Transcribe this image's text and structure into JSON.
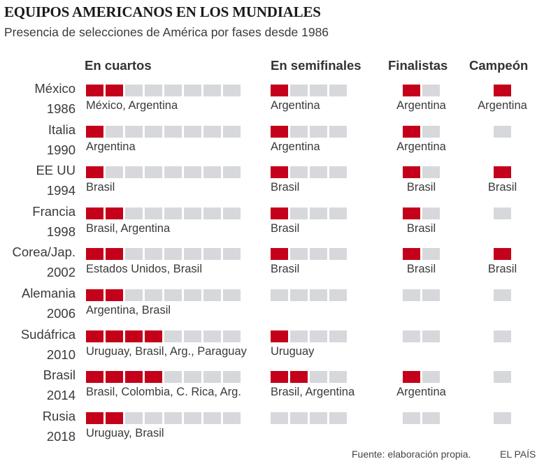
{
  "chart_data": {
    "type": "table",
    "title": "EQUIPOS AMERICANOS EN LOS MUNDIALES",
    "subtitle": "Presencia de selecciones de América por fases desde 1986",
    "colors": {
      "present": "#c4001a",
      "absent": "#d7d8db"
    },
    "columns": [
      {
        "key": "cuartos",
        "label": "En cuartos",
        "slots": 8
      },
      {
        "key": "semis",
        "label": "En semifinales",
        "slots": 4
      },
      {
        "key": "final",
        "label": "Finalistas",
        "slots": 2
      },
      {
        "key": "campeon",
        "label": "Campeón",
        "slots": 1
      }
    ],
    "rows": [
      {
        "host": "México",
        "year": "1986",
        "cuartos": {
          "count": 2,
          "teams": "México, Argentina"
        },
        "semis": {
          "count": 1,
          "teams": "Argentina"
        },
        "final": {
          "count": 1,
          "teams": "Argentina"
        },
        "campeon": {
          "count": 1,
          "teams": "Argentina"
        }
      },
      {
        "host": "Italia",
        "year": "1990",
        "cuartos": {
          "count": 1,
          "teams": "Argentina"
        },
        "semis": {
          "count": 1,
          "teams": "Argentina"
        },
        "final": {
          "count": 1,
          "teams": "Argentina"
        },
        "campeon": {
          "count": 0,
          "teams": ""
        }
      },
      {
        "host": "EE UU",
        "year": "1994",
        "cuartos": {
          "count": 1,
          "teams": "Brasil"
        },
        "semis": {
          "count": 1,
          "teams": "Brasil"
        },
        "final": {
          "count": 1,
          "teams": "Brasil"
        },
        "campeon": {
          "count": 1,
          "teams": "Brasil"
        }
      },
      {
        "host": "Francia",
        "year": "1998",
        "cuartos": {
          "count": 2,
          "teams": "Brasil, Argentina"
        },
        "semis": {
          "count": 1,
          "teams": "Brasil"
        },
        "final": {
          "count": 1,
          "teams": "Brasil"
        },
        "campeon": {
          "count": 0,
          "teams": ""
        }
      },
      {
        "host": "Corea/Jap.",
        "year": "2002",
        "cuartos": {
          "count": 2,
          "teams": "Estados Unidos, Brasil"
        },
        "semis": {
          "count": 1,
          "teams": "Brasil"
        },
        "final": {
          "count": 1,
          "teams": "Brasil"
        },
        "campeon": {
          "count": 1,
          "teams": "Brasil"
        }
      },
      {
        "host": "Alemania",
        "year": "2006",
        "cuartos": {
          "count": 2,
          "teams": "Argentina, Brasil"
        },
        "semis": {
          "count": 0,
          "teams": ""
        },
        "final": {
          "count": 0,
          "teams": ""
        },
        "campeon": {
          "count": 0,
          "teams": ""
        }
      },
      {
        "host": "Sudáfrica",
        "year": "2010",
        "cuartos": {
          "count": 4,
          "teams": "Uruguay, Brasil, Arg., Paraguay"
        },
        "semis": {
          "count": 1,
          "teams": "Uruguay"
        },
        "final": {
          "count": 0,
          "teams": ""
        },
        "campeon": {
          "count": 0,
          "teams": ""
        }
      },
      {
        "host": "Brasil",
        "year": "2014",
        "cuartos": {
          "count": 4,
          "teams": "Brasil, Colombia, C. Rica, Arg."
        },
        "semis": {
          "count": 2,
          "teams": "Brasil, Argentina"
        },
        "final": {
          "count": 1,
          "teams": "Argentina"
        },
        "campeon": {
          "count": 0,
          "teams": ""
        }
      },
      {
        "host": "Rusia",
        "year": "2018",
        "cuartos": {
          "count": 2,
          "teams": "Uruguay, Brasil"
        },
        "semis": {
          "count": 0,
          "teams": ""
        },
        "final": {
          "count": 0,
          "teams": ""
        },
        "campeon": {
          "count": 0,
          "teams": ""
        }
      }
    ]
  },
  "footer": {
    "source": "Fuente: elaboración propia.",
    "brand": "EL PAÍS"
  }
}
